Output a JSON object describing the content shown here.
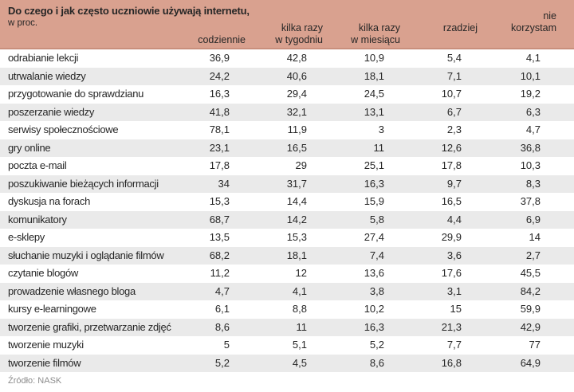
{
  "chart_data": {
    "type": "table",
    "title": "Do czego i jak często uczniowie używają internetu,",
    "unit": "w proc.",
    "columns": [
      "codziennie",
      "kilka razy w tygodniu",
      "kilka razy w miesiącu",
      "rzadziej",
      "nie korzystam"
    ],
    "columns_display": [
      "codziennie",
      "kilka razy\nw tygodniu",
      "kilka razy\nw miesiącu",
      "rzadziej",
      "nie korzystam"
    ],
    "rows": [
      {
        "label": "odrabianie lekcji",
        "values": [
          "36,9",
          "42,8",
          "10,9",
          "5,4",
          "4,1"
        ]
      },
      {
        "label": "utrwalanie wiedzy",
        "values": [
          "24,2",
          "40,6",
          "18,1",
          "7,1",
          "10,1"
        ]
      },
      {
        "label": "przygotowanie do sprawdzianu",
        "values": [
          "16,3",
          "29,4",
          "24,5",
          "10,7",
          "19,2"
        ]
      },
      {
        "label": "poszerzanie wiedzy",
        "values": [
          "41,8",
          "32,1",
          "13,1",
          "6,7",
          "6,3"
        ]
      },
      {
        "label": "serwisy społecznościowe",
        "values": [
          "78,1",
          "11,9",
          "3",
          "2,3",
          "4,7"
        ]
      },
      {
        "label": "gry online",
        "values": [
          "23,1",
          "16,5",
          "11",
          "12,6",
          "36,8"
        ]
      },
      {
        "label": "poczta e-mail",
        "values": [
          "17,8",
          "29",
          "25,1",
          "17,8",
          "10,3"
        ]
      },
      {
        "label": "poszukiwanie bieżących informacji",
        "values": [
          "34",
          "31,7",
          "16,3",
          "9,7",
          "8,3"
        ]
      },
      {
        "label": "dyskusja na forach",
        "values": [
          "15,3",
          "14,4",
          "15,9",
          "16,5",
          "37,8"
        ]
      },
      {
        "label": "komunikatory",
        "values": [
          "68,7",
          "14,2",
          "5,8",
          "4,4",
          "6,9"
        ]
      },
      {
        "label": "e-sklepy",
        "values": [
          "13,5",
          "15,3",
          "27,4",
          "29,9",
          "14"
        ]
      },
      {
        "label": "słuchanie muzyki i oglądanie filmów",
        "values": [
          "68,2",
          "18,1",
          "7,4",
          "3,6",
          "2,7"
        ]
      },
      {
        "label": "czytanie blogów",
        "values": [
          "11,2",
          "12",
          "13,6",
          "17,6",
          "45,5"
        ]
      },
      {
        "label": "prowadzenie własnego bloga",
        "values": [
          "4,7",
          "4,1",
          "3,8",
          "3,1",
          "84,2"
        ]
      },
      {
        "label": "kursy e-learningowe",
        "values": [
          "6,1",
          "8,8",
          "10,2",
          "15",
          "59,9"
        ]
      },
      {
        "label": "tworzenie grafiki, przetwarzanie zdjęć",
        "values": [
          "8,6",
          "11",
          "16,3",
          "21,3",
          "42,9"
        ]
      },
      {
        "label": "tworzenie muzyki",
        "values": [
          "5",
          "5,1",
          "5,2",
          "7,7",
          "77"
        ]
      },
      {
        "label": "tworzenie filmów",
        "values": [
          "5,2",
          "4,5",
          "8,6",
          "16,8",
          "64,9"
        ]
      }
    ],
    "source": "Źródło: NASK"
  },
  "colors": {
    "header_bg": "#d9a18f",
    "header_edge": "#c98f7c",
    "row_alt_bg": "#eaeaea",
    "text": "#262626",
    "source_text": "#8c8c8c"
  }
}
